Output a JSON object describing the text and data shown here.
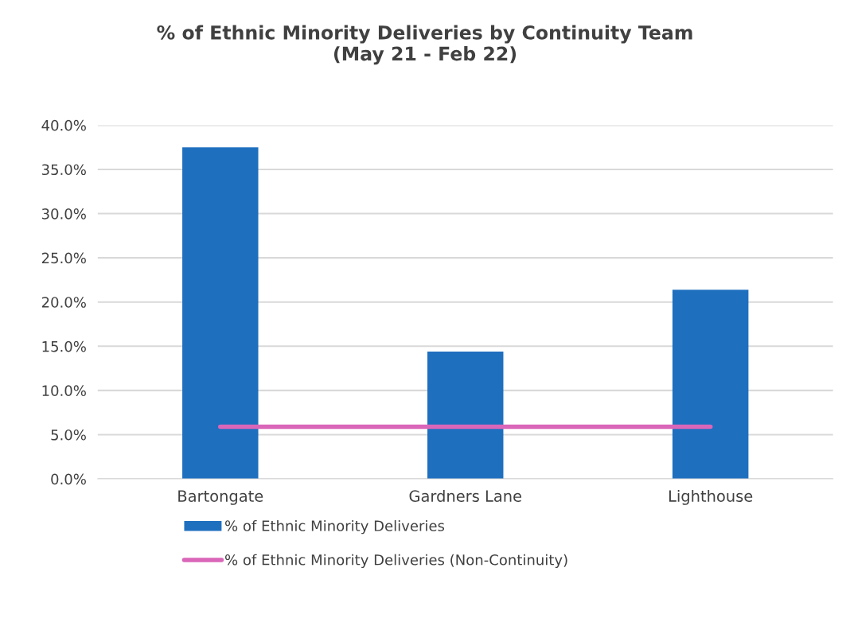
{
  "chart_data": {
    "type": "bar",
    "title": "% of Ethnic Minority Deliveries by Continuity Team\n(May 21 - Feb 22)",
    "categories": [
      "Bartongate",
      "Gardners Lane",
      "Lighthouse"
    ],
    "series": [
      {
        "name": "% of Ethnic Minority Deliveries",
        "color": "#1f6fbf",
        "values": [
          37.5,
          14.4,
          21.4
        ]
      },
      {
        "name": "% of Ethnic Minority Deliveries (Non-Continuity)",
        "color": "#d966b8",
        "type": "line",
        "values": [
          5.9,
          5.9,
          5.9
        ]
      }
    ],
    "ylim": [
      0,
      40
    ],
    "yticks": [
      {
        "value": 0,
        "label": "0.0%"
      },
      {
        "value": 5,
        "label": "5.0%"
      },
      {
        "value": 10,
        "label": "10.0%"
      },
      {
        "value": 15,
        "label": "15.0%"
      },
      {
        "value": 20,
        "label": "20.0%"
      },
      {
        "value": 25,
        "label": "25.0%"
      },
      {
        "value": 30,
        "label": "30.0%"
      },
      {
        "value": 35,
        "label": "35.0%"
      },
      {
        "value": 40,
        "label": "40.0%"
      }
    ],
    "grid": "y",
    "legend": "bottom left"
  }
}
